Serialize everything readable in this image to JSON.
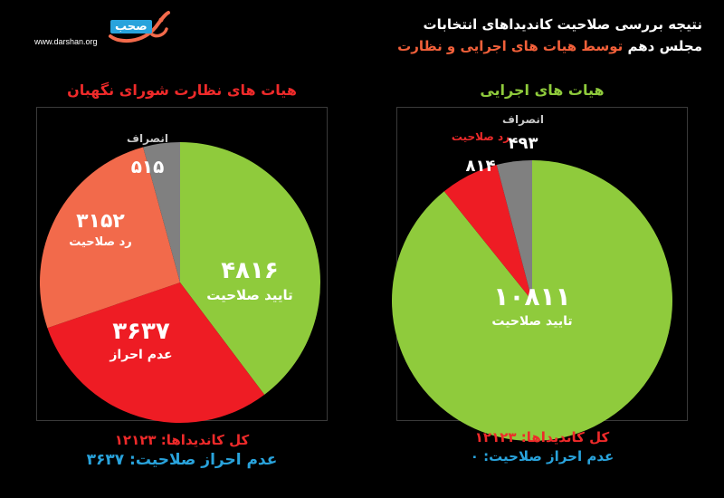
{
  "brand": {
    "url": "www.darshan.org",
    "logo_word": "صحب",
    "accent": "#29a3dc"
  },
  "header": {
    "line1": "نتیجه بررسی صلاحیت کاندیداهای انتخابات",
    "line2_white": "مجلس دهم",
    "line2_orange": "توسط هیات های اجرایی و نظارت"
  },
  "chart_data": [
    {
      "type": "pie",
      "title": "هیات های نظارت شورای نگهبان",
      "slices": [
        {
          "label": "تایید صلاحیت",
          "value": 4816,
          "value_text": "۴۸۱۶",
          "color": "#8fcb3c"
        },
        {
          "label": "عدم احراز",
          "value": 3637,
          "value_text": "۳۶۳۷",
          "color": "#ee1c24"
        },
        {
          "label": "رد صلاحیت",
          "value": 3152,
          "value_text": "۳۱۵۲",
          "color": "#f26a4b"
        },
        {
          "label": "انصراف",
          "value": 515,
          "value_text": "۵۱۵",
          "color": "#808080"
        }
      ],
      "footer": {
        "total": "کل کاندیداها: ۱۲۱۲۳",
        "disqualified": "عدم احراز صلاحیت: ۳۶۳۷"
      }
    },
    {
      "type": "pie",
      "title": "هیات های اجرایی",
      "slices": [
        {
          "label": "تایید صلاحیت",
          "value": 10811,
          "value_text": "۱۰۸۱۱",
          "color": "#8fcb3c"
        },
        {
          "label": "رد صلاحیت",
          "value": 814,
          "value_text": "۸۱۴",
          "color": "#ee1c24"
        },
        {
          "label": "انصراف",
          "value": 493,
          "value_text": "۴۹۳",
          "color": "#808080"
        }
      ],
      "footer": {
        "total": "کل کاندیداها: ۱۲۱۲۳",
        "disqualified": "عدم احراز صلاحیت: ۰"
      }
    }
  ]
}
